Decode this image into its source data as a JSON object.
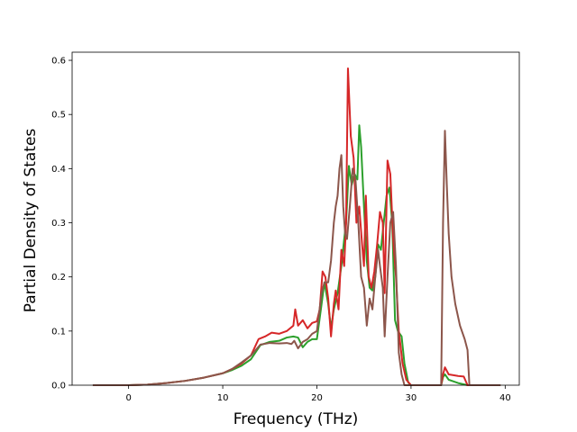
{
  "chart_data": {
    "type": "line",
    "xlabel": "Frequency (THz)",
    "ylabel": "Partial Density of States",
    "xlim": [
      -6.0,
      41.5
    ],
    "ylim": [
      0.0,
      0.615
    ],
    "xticks": [
      0,
      10,
      20,
      30,
      40
    ],
    "yticks": [
      0.0,
      0.1,
      0.2,
      0.3,
      0.4,
      0.5,
      0.6
    ],
    "ytick_labels": [
      "0.0",
      "0.1",
      "0.2",
      "0.3",
      "0.4",
      "0.5",
      "0.6"
    ],
    "grid": false,
    "legend": false,
    "series": [
      {
        "color": "#2ca02c",
        "points": [
          [
            -3.8,
            0
          ],
          [
            0,
            0
          ],
          [
            2,
            0.001
          ],
          [
            4,
            0.004
          ],
          [
            6,
            0.008
          ],
          [
            8,
            0.014
          ],
          [
            10,
            0.022
          ],
          [
            11,
            0.028
          ],
          [
            12,
            0.036
          ],
          [
            13,
            0.048
          ],
          [
            14,
            0.074
          ],
          [
            15,
            0.08
          ],
          [
            16,
            0.082
          ],
          [
            16.8,
            0.088
          ],
          [
            17.5,
            0.09
          ],
          [
            18,
            0.088
          ],
          [
            18.5,
            0.07
          ],
          [
            19,
            0.08
          ],
          [
            19.5,
            0.085
          ],
          [
            20,
            0.085
          ],
          [
            20.5,
            0.15
          ],
          [
            20.8,
            0.19
          ],
          [
            21.2,
            0.15
          ],
          [
            21.5,
            0.105
          ],
          [
            21.8,
            0.14
          ],
          [
            22.2,
            0.17
          ],
          [
            22.6,
            0.22
          ],
          [
            22.9,
            0.27
          ],
          [
            23.1,
            0.3
          ],
          [
            23.4,
            0.405
          ],
          [
            23.7,
            0.37
          ],
          [
            24,
            0.39
          ],
          [
            24.3,
            0.38
          ],
          [
            24.5,
            0.48
          ],
          [
            24.7,
            0.44
          ],
          [
            25,
            0.33
          ],
          [
            25.3,
            0.23
          ],
          [
            25.6,
            0.18
          ],
          [
            25.9,
            0.175
          ],
          [
            26.2,
            0.2
          ],
          [
            26.5,
            0.26
          ],
          [
            26.8,
            0.25
          ],
          [
            27.1,
            0.3
          ],
          [
            27.4,
            0.35
          ],
          [
            27.7,
            0.365
          ],
          [
            28,
            0.3
          ],
          [
            28.3,
            0.12
          ],
          [
            28.6,
            0.1
          ],
          [
            29,
            0.09
          ],
          [
            29.3,
            0.04
          ],
          [
            29.7,
            0.005
          ],
          [
            30,
            0
          ],
          [
            33.2,
            0
          ],
          [
            33.4,
            0.015
          ],
          [
            33.6,
            0.02
          ],
          [
            34,
            0.01
          ],
          [
            35,
            0.004
          ],
          [
            36,
            0
          ],
          [
            39.5,
            0
          ]
        ]
      },
      {
        "color": "#d62728",
        "points": [
          [
            -3.8,
            0
          ],
          [
            0,
            0
          ],
          [
            2,
            0.001
          ],
          [
            4,
            0.004
          ],
          [
            6,
            0.008
          ],
          [
            8,
            0.014
          ],
          [
            10,
            0.022
          ],
          [
            11,
            0.03
          ],
          [
            12,
            0.04
          ],
          [
            13,
            0.055
          ],
          [
            13.8,
            0.085
          ],
          [
            14.5,
            0.09
          ],
          [
            15.2,
            0.097
          ],
          [
            16,
            0.095
          ],
          [
            16.8,
            0.1
          ],
          [
            17.5,
            0.11
          ],
          [
            17.7,
            0.14
          ],
          [
            18,
            0.11
          ],
          [
            18.5,
            0.12
          ],
          [
            19,
            0.105
          ],
          [
            19.5,
            0.115
          ],
          [
            20,
            0.118
          ],
          [
            20.3,
            0.14
          ],
          [
            20.6,
            0.21
          ],
          [
            20.9,
            0.2
          ],
          [
            21.2,
            0.16
          ],
          [
            21.5,
            0.09
          ],
          [
            21.8,
            0.15
          ],
          [
            22,
            0.175
          ],
          [
            22.3,
            0.14
          ],
          [
            22.6,
            0.25
          ],
          [
            22.9,
            0.22
          ],
          [
            23.1,
            0.3
          ],
          [
            23.3,
            0.585
          ],
          [
            23.6,
            0.46
          ],
          [
            23.9,
            0.42
          ],
          [
            24.2,
            0.3
          ],
          [
            24.5,
            0.33
          ],
          [
            24.8,
            0.26
          ],
          [
            25,
            0.22
          ],
          [
            25.2,
            0.35
          ],
          [
            25.5,
            0.2
          ],
          [
            25.8,
            0.18
          ],
          [
            26.1,
            0.21
          ],
          [
            26.4,
            0.26
          ],
          [
            26.7,
            0.32
          ],
          [
            27,
            0.3
          ],
          [
            27.2,
            0.17
          ],
          [
            27.5,
            0.415
          ],
          [
            27.8,
            0.39
          ],
          [
            28.1,
            0.27
          ],
          [
            28.4,
            0.2
          ],
          [
            28.7,
            0.1
          ],
          [
            29.1,
            0.04
          ],
          [
            29.5,
            0.01
          ],
          [
            30,
            0
          ],
          [
            33.2,
            0
          ],
          [
            33.4,
            0.02
          ],
          [
            33.6,
            0.033
          ],
          [
            34,
            0.02
          ],
          [
            35,
            0.017
          ],
          [
            35.6,
            0.016
          ],
          [
            36,
            0
          ],
          [
            39.5,
            0
          ]
        ]
      },
      {
        "color": "#8c564b",
        "points": [
          [
            -3.8,
            0
          ],
          [
            0,
            0
          ],
          [
            2,
            0.001
          ],
          [
            4,
            0.004
          ],
          [
            6,
            0.008
          ],
          [
            8,
            0.014
          ],
          [
            10,
            0.022
          ],
          [
            11,
            0.03
          ],
          [
            12,
            0.042
          ],
          [
            13,
            0.055
          ],
          [
            14,
            0.075
          ],
          [
            15,
            0.078
          ],
          [
            16,
            0.077
          ],
          [
            16.8,
            0.078
          ],
          [
            17.3,
            0.076
          ],
          [
            17.6,
            0.082
          ],
          [
            18,
            0.068
          ],
          [
            18.5,
            0.08
          ],
          [
            19,
            0.085
          ],
          [
            19.5,
            0.095
          ],
          [
            20,
            0.1
          ],
          [
            20.5,
            0.17
          ],
          [
            20.8,
            0.19
          ],
          [
            21.2,
            0.19
          ],
          [
            21.5,
            0.23
          ],
          [
            21.8,
            0.3
          ],
          [
            22,
            0.33
          ],
          [
            22.2,
            0.35
          ],
          [
            22.4,
            0.4
          ],
          [
            22.6,
            0.425
          ],
          [
            22.8,
            0.33
          ],
          [
            23,
            0.28
          ],
          [
            23.2,
            0.27
          ],
          [
            23.5,
            0.33
          ],
          [
            23.8,
            0.4
          ],
          [
            24.1,
            0.38
          ],
          [
            24.4,
            0.3
          ],
          [
            24.7,
            0.2
          ],
          [
            25,
            0.18
          ],
          [
            25.3,
            0.11
          ],
          [
            25.6,
            0.16
          ],
          [
            25.9,
            0.14
          ],
          [
            26.2,
            0.2
          ],
          [
            26.5,
            0.25
          ],
          [
            26.7,
            0.22
          ],
          [
            27,
            0.18
          ],
          [
            27.2,
            0.09
          ],
          [
            27.5,
            0.2
          ],
          [
            27.8,
            0.3
          ],
          [
            28.1,
            0.32
          ],
          [
            28.4,
            0.22
          ],
          [
            28.7,
            0.06
          ],
          [
            29,
            0.02
          ],
          [
            29.3,
            0
          ],
          [
            33.2,
            0
          ],
          [
            33.4,
            0.3
          ],
          [
            33.6,
            0.47
          ],
          [
            33.8,
            0.37
          ],
          [
            34,
            0.28
          ],
          [
            34.3,
            0.2
          ],
          [
            34.7,
            0.15
          ],
          [
            35.2,
            0.11
          ],
          [
            35.7,
            0.085
          ],
          [
            36,
            0.065
          ],
          [
            36.2,
            0
          ],
          [
            39.5,
            0
          ]
        ]
      }
    ]
  }
}
